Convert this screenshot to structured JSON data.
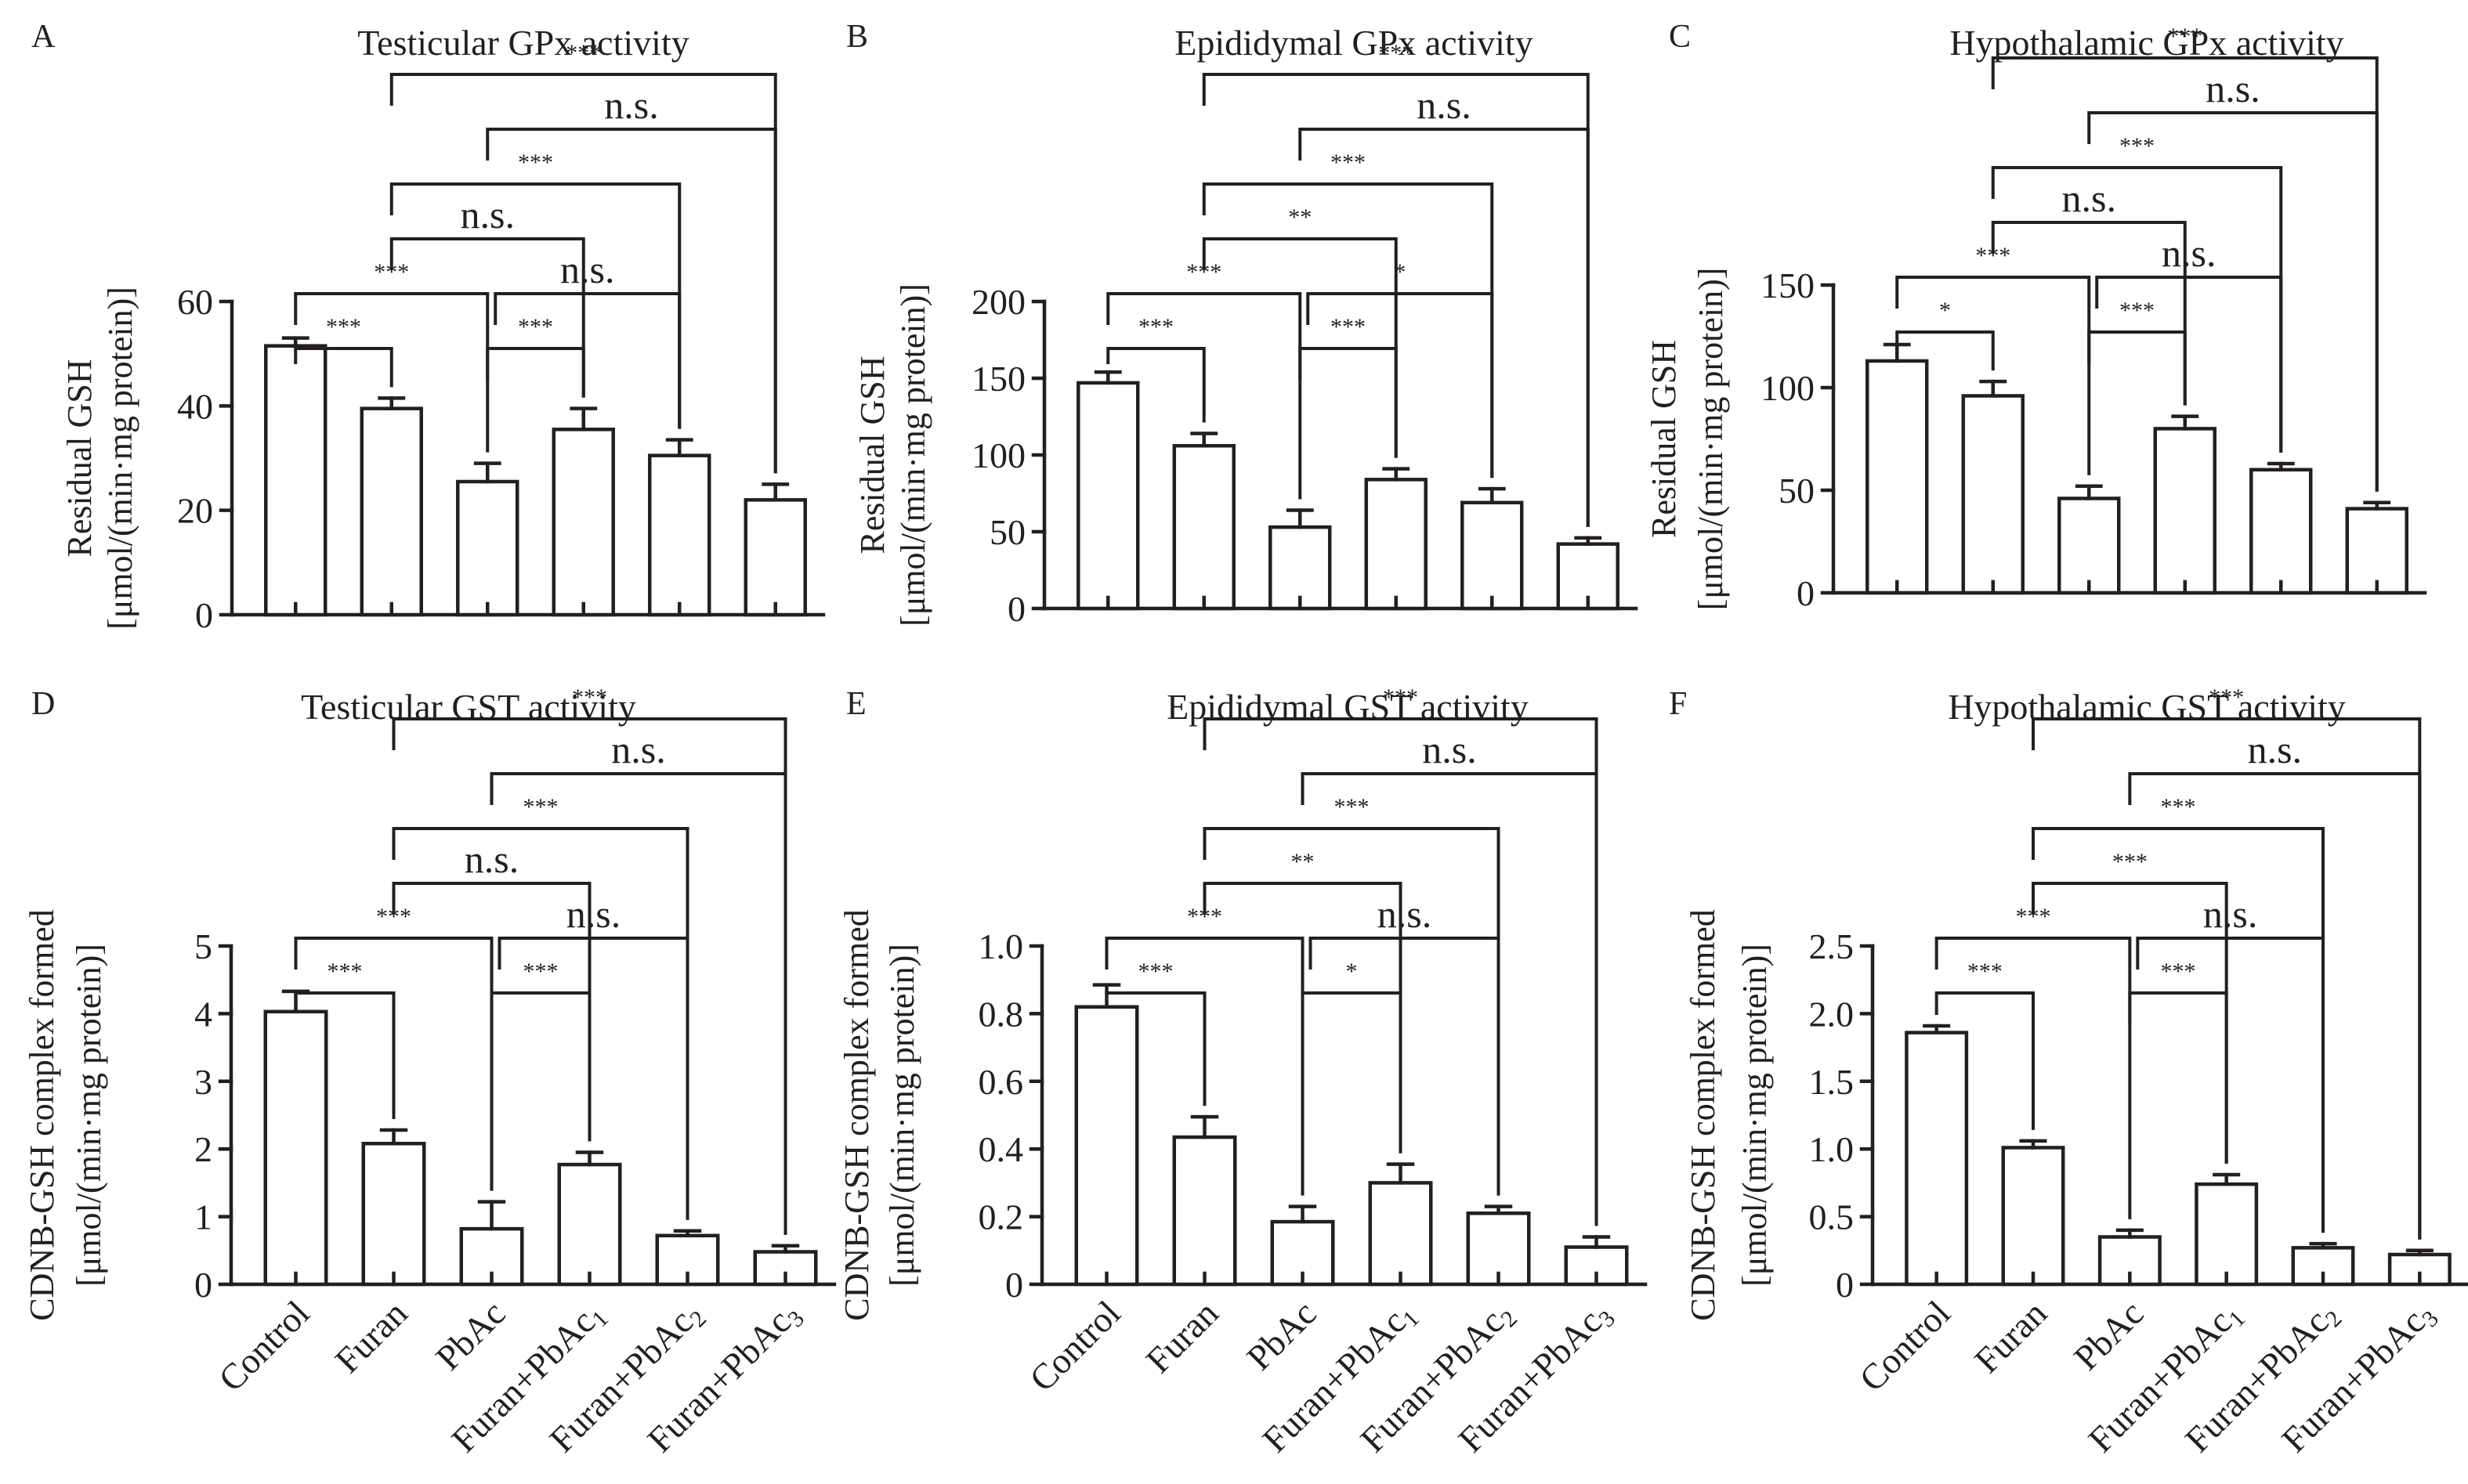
{
  "groups": [
    "Control",
    "Furan",
    "PbAc",
    "Furan+PbAc1",
    "Furan+PbAc2",
    "Furan+PbAc3"
  ],
  "group_labels": [
    {
      "base": "Control",
      "sub": ""
    },
    {
      "base": "Furan",
      "sub": ""
    },
    {
      "base": "PbAc",
      "sub": ""
    },
    {
      "base": "Furan+PbAc",
      "sub": "1"
    },
    {
      "base": "Furan+PbAc",
      "sub": "2"
    },
    {
      "base": "Furan+PbAc",
      "sub": "3"
    }
  ],
  "colors": {
    "ink": "#231f20",
    "bar_fill": "#ffffff",
    "background": "#ffffff"
  },
  "chart_data": [
    {
      "panel": "A",
      "type": "bar",
      "title": "Testicular GPx activity",
      "ylabel": [
        "Residual GSH",
        "[μmol/(min·mg protein)]"
      ],
      "ylim": [
        0,
        60
      ],
      "yticks": [
        0,
        20,
        40,
        60
      ],
      "ytick_labels": [
        "0",
        "20",
        "40",
        "60"
      ],
      "show_xlabels": false,
      "values": [
        51.5,
        39.5,
        25.5,
        35.5,
        30.5,
        22.0
      ],
      "errors": [
        1.5,
        2.0,
        3.5,
        4.0,
        3.0,
        3.0
      ],
      "comparisons": [
        {
          "a": 0,
          "b": 1,
          "label": "***"
        },
        {
          "a": 0,
          "b": 2,
          "label": "***"
        },
        {
          "a": 2,
          "b": 3,
          "label": "***"
        },
        {
          "a": 2,
          "b": 4,
          "label": "n.s."
        },
        {
          "a": 1,
          "b": 3,
          "label": "n.s."
        },
        {
          "a": 1,
          "b": 4,
          "label": "***"
        },
        {
          "a": 2,
          "b": 5,
          "label": "n.s."
        },
        {
          "a": 1,
          "b": 5,
          "label": "***"
        }
      ]
    },
    {
      "panel": "B",
      "type": "bar",
      "title": "Epididymal GPx activity",
      "ylabel": [
        "Residual GSH",
        "[μmol/(min·mg protein)]"
      ],
      "ylim": [
        0,
        200
      ],
      "yticks": [
        0,
        50,
        100,
        150,
        200
      ],
      "ytick_labels": [
        "0",
        "50",
        "100",
        "150",
        "200"
      ],
      "show_xlabels": false,
      "values": [
        147,
        106,
        53,
        84,
        69,
        42
      ],
      "errors": [
        7,
        8,
        11,
        7,
        9,
        4
      ],
      "comparisons": [
        {
          "a": 0,
          "b": 1,
          "label": "***"
        },
        {
          "a": 0,
          "b": 2,
          "label": "***"
        },
        {
          "a": 2,
          "b": 3,
          "label": "***"
        },
        {
          "a": 2,
          "b": 4,
          "label": "*"
        },
        {
          "a": 1,
          "b": 3,
          "label": "**"
        },
        {
          "a": 1,
          "b": 4,
          "label": "***"
        },
        {
          "a": 2,
          "b": 5,
          "label": "n.s."
        },
        {
          "a": 1,
          "b": 5,
          "label": "***"
        }
      ]
    },
    {
      "panel": "C",
      "type": "bar",
      "title": "Hypothalamic GPx activity",
      "ylabel": [
        "Residual GSH",
        "[μmol/(min·mg protein)]"
      ],
      "ylim": [
        0,
        150
      ],
      "yticks": [
        0,
        50,
        100,
        150
      ],
      "ytick_labels": [
        "0",
        "50",
        "100",
        "150"
      ],
      "show_xlabels": false,
      "values": [
        113,
        96,
        46,
        80,
        60,
        41
      ],
      "errors": [
        8,
        7,
        6,
        6,
        3,
        3
      ],
      "comparisons": [
        {
          "a": 0,
          "b": 1,
          "label": "*"
        },
        {
          "a": 0,
          "b": 2,
          "label": "***"
        },
        {
          "a": 2,
          "b": 3,
          "label": "***"
        },
        {
          "a": 2,
          "b": 4,
          "label": "n.s."
        },
        {
          "a": 1,
          "b": 3,
          "label": "n.s."
        },
        {
          "a": 1,
          "b": 4,
          "label": "***"
        },
        {
          "a": 2,
          "b": 5,
          "label": "n.s."
        },
        {
          "a": 1,
          "b": 5,
          "label": "***"
        }
      ]
    },
    {
      "panel": "D",
      "type": "bar",
      "title": "Testicular GST activity",
      "ylabel": [
        "CDNB-GSH complex formed",
        "[μmol/(min·mg protein)]"
      ],
      "ylim": [
        0,
        5
      ],
      "yticks": [
        0,
        1,
        2,
        3,
        4,
        5
      ],
      "ytick_labels": [
        "0",
        "1",
        "2",
        "3",
        "4",
        "5"
      ],
      "show_xlabels": true,
      "values": [
        4.03,
        2.08,
        0.82,
        1.77,
        0.72,
        0.48
      ],
      "errors": [
        0.3,
        0.2,
        0.4,
        0.18,
        0.07,
        0.09
      ],
      "comparisons": [
        {
          "a": 0,
          "b": 1,
          "label": "***"
        },
        {
          "a": 0,
          "b": 2,
          "label": "***"
        },
        {
          "a": 2,
          "b": 3,
          "label": "***"
        },
        {
          "a": 2,
          "b": 4,
          "label": "n.s."
        },
        {
          "a": 1,
          "b": 3,
          "label": "n.s."
        },
        {
          "a": 2,
          "b": 5,
          "label": "n.s."
        },
        {
          "a": 1,
          "b": 4,
          "label": "***"
        },
        {
          "a": 1,
          "b": 5,
          "label": "***"
        }
      ]
    },
    {
      "panel": "E",
      "type": "bar",
      "title": "Epididymal GST activity",
      "ylabel": [
        "CDNB-GSH complex formed",
        "[μmol/(min·mg protein)]"
      ],
      "ylim": [
        0,
        1.0
      ],
      "yticks": [
        0,
        0.2,
        0.4,
        0.6,
        0.8,
        1.0
      ],
      "ytick_labels": [
        "0",
        "0.2",
        "0.4",
        "0.6",
        "0.8",
        "1.0"
      ],
      "show_xlabels": true,
      "values": [
        0.82,
        0.435,
        0.185,
        0.3,
        0.21,
        0.11
      ],
      "errors": [
        0.065,
        0.06,
        0.045,
        0.055,
        0.02,
        0.03
      ],
      "comparisons": [
        {
          "a": 0,
          "b": 1,
          "label": "***"
        },
        {
          "a": 0,
          "b": 2,
          "label": "***"
        },
        {
          "a": 2,
          "b": 3,
          "label": "*"
        },
        {
          "a": 2,
          "b": 4,
          "label": "n.s."
        },
        {
          "a": 1,
          "b": 3,
          "label": "**"
        },
        {
          "a": 1,
          "b": 4,
          "label": "***"
        },
        {
          "a": 2,
          "b": 5,
          "label": "n.s."
        },
        {
          "a": 1,
          "b": 5,
          "label": "***"
        }
      ]
    },
    {
      "panel": "F",
      "type": "bar",
      "title": "Hypothalamic GST activity",
      "ylabel": [
        "CDNB-GSH complex formed",
        "[μmol/(min·mg protein)]"
      ],
      "ylim": [
        0,
        2.5
      ],
      "yticks": [
        0,
        0.5,
        1.0,
        1.5,
        2.0,
        2.5
      ],
      "ytick_labels": [
        "0",
        "0.5",
        "1.0",
        "1.5",
        "2.0",
        "2.5"
      ],
      "show_xlabels": true,
      "values": [
        1.86,
        1.01,
        0.35,
        0.74,
        0.27,
        0.22
      ],
      "errors": [
        0.05,
        0.05,
        0.05,
        0.07,
        0.03,
        0.03
      ],
      "comparisons": [
        {
          "a": 0,
          "b": 1,
          "label": "***"
        },
        {
          "a": 0,
          "b": 2,
          "label": "***"
        },
        {
          "a": 2,
          "b": 3,
          "label": "***"
        },
        {
          "a": 2,
          "b": 4,
          "label": "n.s."
        },
        {
          "a": 1,
          "b": 3,
          "label": "***"
        },
        {
          "a": 1,
          "b": 4,
          "label": "***"
        },
        {
          "a": 2,
          "b": 5,
          "label": "n.s."
        },
        {
          "a": 1,
          "b": 5,
          "label": "***"
        }
      ]
    }
  ]
}
